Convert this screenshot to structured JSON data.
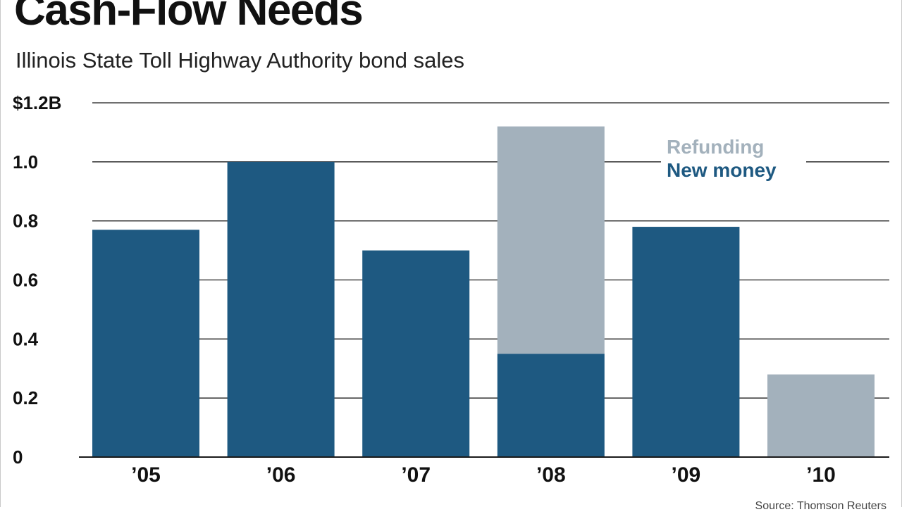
{
  "colors": {
    "new_money": "#1e5981",
    "refunding": "#a3b1bc",
    "gridline": "#1a1a1a",
    "axis": "#1a1a1a"
  },
  "chart_data": {
    "type": "bar",
    "stacked": true,
    "title": "Cash-Flow Needs",
    "subtitle": "Illinois State Toll Highway Authority bond sales",
    "source": "Source: Thomson Reuters",
    "xlabel": "",
    "ylabel": "",
    "ylim": [
      0,
      1.2
    ],
    "grid": true,
    "legend_position": "top-right",
    "categories": [
      "’05",
      "’06",
      "’07",
      "’08",
      "’09",
      "’10"
    ],
    "series": [
      {
        "name": "New money",
        "color_key": "new_money",
        "values": [
          0.77,
          1.0,
          0.7,
          0.35,
          0.78,
          0
        ]
      },
      {
        "name": "Refunding",
        "color_key": "refunding",
        "values": [
          0,
          0,
          0,
          0.77,
          0,
          0.28
        ]
      }
    ],
    "y_ticks": [
      {
        "value": 0,
        "label": "0"
      },
      {
        "value": 0.2,
        "label": "0.2"
      },
      {
        "value": 0.4,
        "label": "0.4"
      },
      {
        "value": 0.6,
        "label": "0.6"
      },
      {
        "value": 0.8,
        "label": "0.8"
      },
      {
        "value": 1.0,
        "label": "1.0"
      },
      {
        "value": 1.2,
        "label": "$1.2B"
      }
    ],
    "legend": [
      {
        "name": "Refunding",
        "color_key": "refunding"
      },
      {
        "name": "New money",
        "color_key": "new_money"
      }
    ]
  }
}
